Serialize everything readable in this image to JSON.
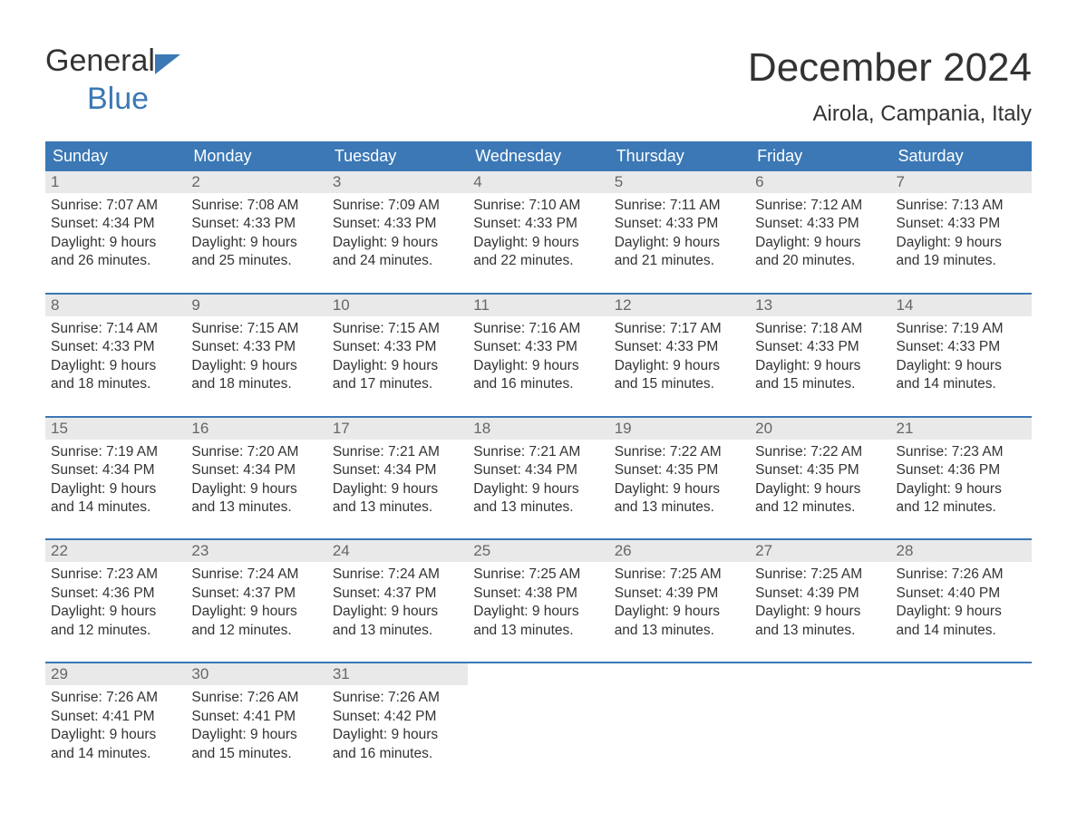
{
  "brand": {
    "line1": "General",
    "line2": "Blue",
    "icon_fill": "#3b78b5"
  },
  "title": "December 2024",
  "location": "Airola, Campania, Italy",
  "colors": {
    "header_bg": "#3b78b5",
    "header_text": "#ffffff",
    "daynum_bg": "#e9e9e9",
    "daynum_text": "#666666",
    "body_text": "#333333",
    "week_border": "#3b78b5"
  },
  "day_headers": [
    "Sunday",
    "Monday",
    "Tuesday",
    "Wednesday",
    "Thursday",
    "Friday",
    "Saturday"
  ],
  "labels": {
    "sunrise": "Sunrise:",
    "sunset": "Sunset:",
    "daylight_prefix": "Daylight:",
    "daylight_join": "and",
    "daylight_unit1": "hours",
    "daylight_unit2": "minutes."
  },
  "weeks": [
    [
      {
        "n": "1",
        "sunrise": "7:07 AM",
        "sunset": "4:34 PM",
        "dl_h": "9",
        "dl_m": "26"
      },
      {
        "n": "2",
        "sunrise": "7:08 AM",
        "sunset": "4:33 PM",
        "dl_h": "9",
        "dl_m": "25"
      },
      {
        "n": "3",
        "sunrise": "7:09 AM",
        "sunset": "4:33 PM",
        "dl_h": "9",
        "dl_m": "24"
      },
      {
        "n": "4",
        "sunrise": "7:10 AM",
        "sunset": "4:33 PM",
        "dl_h": "9",
        "dl_m": "22"
      },
      {
        "n": "5",
        "sunrise": "7:11 AM",
        "sunset": "4:33 PM",
        "dl_h": "9",
        "dl_m": "21"
      },
      {
        "n": "6",
        "sunrise": "7:12 AM",
        "sunset": "4:33 PM",
        "dl_h": "9",
        "dl_m": "20"
      },
      {
        "n": "7",
        "sunrise": "7:13 AM",
        "sunset": "4:33 PM",
        "dl_h": "9",
        "dl_m": "19"
      }
    ],
    [
      {
        "n": "8",
        "sunrise": "7:14 AM",
        "sunset": "4:33 PM",
        "dl_h": "9",
        "dl_m": "18"
      },
      {
        "n": "9",
        "sunrise": "7:15 AM",
        "sunset": "4:33 PM",
        "dl_h": "9",
        "dl_m": "18"
      },
      {
        "n": "10",
        "sunrise": "7:15 AM",
        "sunset": "4:33 PM",
        "dl_h": "9",
        "dl_m": "17"
      },
      {
        "n": "11",
        "sunrise": "7:16 AM",
        "sunset": "4:33 PM",
        "dl_h": "9",
        "dl_m": "16"
      },
      {
        "n": "12",
        "sunrise": "7:17 AM",
        "sunset": "4:33 PM",
        "dl_h": "9",
        "dl_m": "15"
      },
      {
        "n": "13",
        "sunrise": "7:18 AM",
        "sunset": "4:33 PM",
        "dl_h": "9",
        "dl_m": "15"
      },
      {
        "n": "14",
        "sunrise": "7:19 AM",
        "sunset": "4:33 PM",
        "dl_h": "9",
        "dl_m": "14"
      }
    ],
    [
      {
        "n": "15",
        "sunrise": "7:19 AM",
        "sunset": "4:34 PM",
        "dl_h": "9",
        "dl_m": "14"
      },
      {
        "n": "16",
        "sunrise": "7:20 AM",
        "sunset": "4:34 PM",
        "dl_h": "9",
        "dl_m": "13"
      },
      {
        "n": "17",
        "sunrise": "7:21 AM",
        "sunset": "4:34 PM",
        "dl_h": "9",
        "dl_m": "13"
      },
      {
        "n": "18",
        "sunrise": "7:21 AM",
        "sunset": "4:34 PM",
        "dl_h": "9",
        "dl_m": "13"
      },
      {
        "n": "19",
        "sunrise": "7:22 AM",
        "sunset": "4:35 PM",
        "dl_h": "9",
        "dl_m": "13"
      },
      {
        "n": "20",
        "sunrise": "7:22 AM",
        "sunset": "4:35 PM",
        "dl_h": "9",
        "dl_m": "12"
      },
      {
        "n": "21",
        "sunrise": "7:23 AM",
        "sunset": "4:36 PM",
        "dl_h": "9",
        "dl_m": "12"
      }
    ],
    [
      {
        "n": "22",
        "sunrise": "7:23 AM",
        "sunset": "4:36 PM",
        "dl_h": "9",
        "dl_m": "12"
      },
      {
        "n": "23",
        "sunrise": "7:24 AM",
        "sunset": "4:37 PM",
        "dl_h": "9",
        "dl_m": "12"
      },
      {
        "n": "24",
        "sunrise": "7:24 AM",
        "sunset": "4:37 PM",
        "dl_h": "9",
        "dl_m": "13"
      },
      {
        "n": "25",
        "sunrise": "7:25 AM",
        "sunset": "4:38 PM",
        "dl_h": "9",
        "dl_m": "13"
      },
      {
        "n": "26",
        "sunrise": "7:25 AM",
        "sunset": "4:39 PM",
        "dl_h": "9",
        "dl_m": "13"
      },
      {
        "n": "27",
        "sunrise": "7:25 AM",
        "sunset": "4:39 PM",
        "dl_h": "9",
        "dl_m": "13"
      },
      {
        "n": "28",
        "sunrise": "7:26 AM",
        "sunset": "4:40 PM",
        "dl_h": "9",
        "dl_m": "14"
      }
    ],
    [
      {
        "n": "29",
        "sunrise": "7:26 AM",
        "sunset": "4:41 PM",
        "dl_h": "9",
        "dl_m": "14"
      },
      {
        "n": "30",
        "sunrise": "7:26 AM",
        "sunset": "4:41 PM",
        "dl_h": "9",
        "dl_m": "15"
      },
      {
        "n": "31",
        "sunrise": "7:26 AM",
        "sunset": "4:42 PM",
        "dl_h": "9",
        "dl_m": "16"
      },
      null,
      null,
      null,
      null
    ]
  ]
}
